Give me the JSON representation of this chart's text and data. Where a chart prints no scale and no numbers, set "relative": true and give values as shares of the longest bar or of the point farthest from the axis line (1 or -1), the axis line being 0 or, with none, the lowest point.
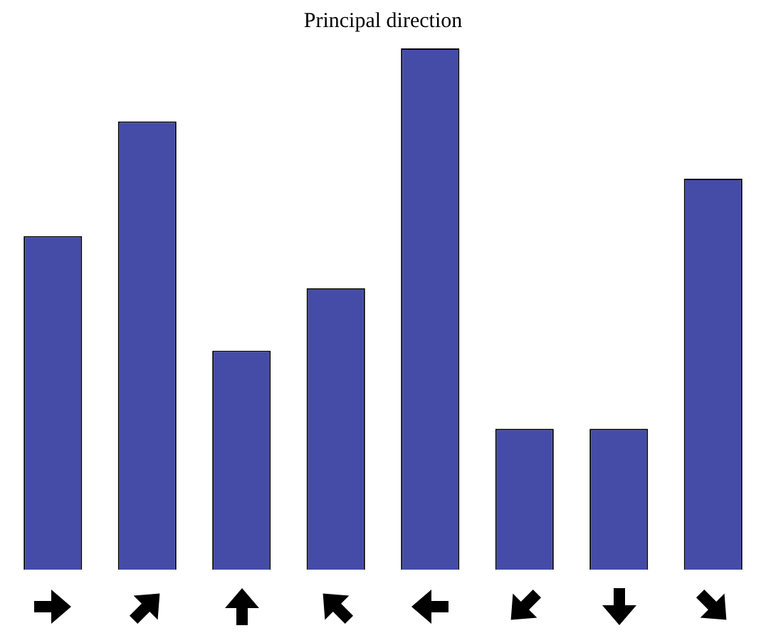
{
  "chart_data": {
    "type": "bar",
    "title": "Principal direction",
    "relative": true,
    "categories": [
      null,
      null,
      null,
      null,
      null,
      null,
      null,
      null
    ],
    "values": [
      0.64,
      0.86,
      0.42,
      0.54,
      1,
      0.27,
      0.27,
      0.75
    ],
    "color": "#444ca8"
  }
}
